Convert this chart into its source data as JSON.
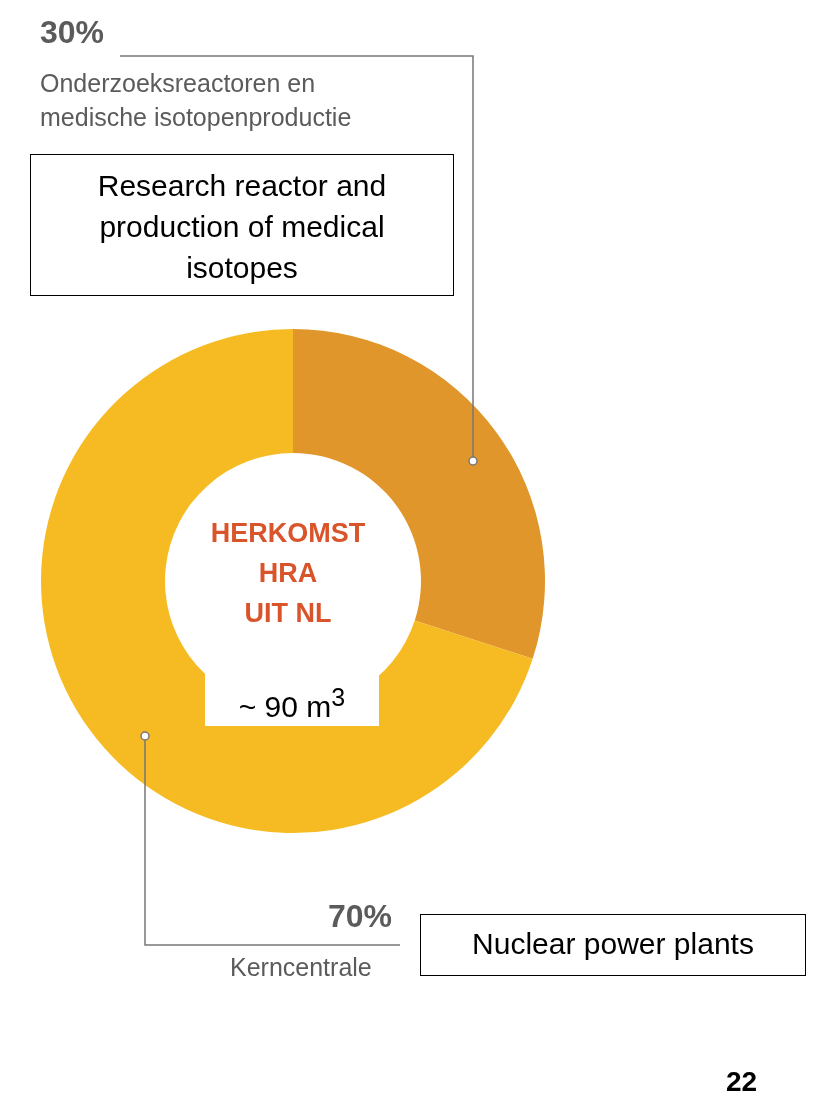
{
  "chart_data": {
    "type": "donut",
    "title": "HERKOMST\nHRA\nUIT NL",
    "categories": [
      "Onderzoeksreactoren en medische isotopenproductie",
      "Kerncentrale"
    ],
    "values": [
      30,
      70
    ],
    "colors": [
      "#e0962a",
      "#f6bb22"
    ],
    "value_labels": [
      "30%",
      "70%"
    ],
    "annotations": [
      "Research reactor and production of medical isotopes",
      "~ 90 m$^{3}$",
      "Nuclear power plants",
      "22"
    ],
    "data_labels": false
  }
}
